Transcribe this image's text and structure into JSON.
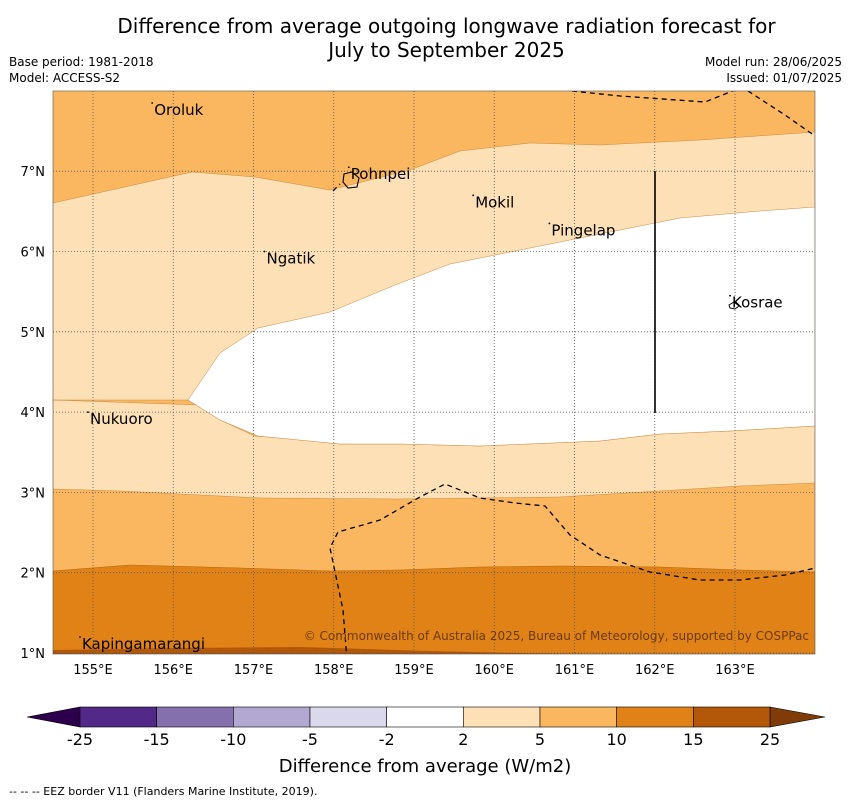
{
  "title_line1": "Difference from average outgoing longwave radiation forecast for",
  "title_line2": "July to September 2025",
  "base_period": "Base period: 1981-2018",
  "model": "Model: ACCESS-S2",
  "model_run": "Model run: 28/06/2025",
  "issued": "Issued: 01/07/2025",
  "copyright": "© Commonwealth of Australia 2025, Bureau of Meteorology, supported by COSPPac",
  "places": [
    {
      "name": "Oroluk",
      "lon": 155.75,
      "lat": 7.7
    },
    {
      "name": "Pohnpei",
      "lon": 158.2,
      "lat": 6.9
    },
    {
      "name": "Mokil",
      "lon": 159.75,
      "lat": 6.55
    },
    {
      "name": "Pingelap",
      "lon": 160.7,
      "lat": 6.2
    },
    {
      "name": "Ngatik",
      "lon": 157.15,
      "lat": 5.85
    },
    {
      "name": "Kosrae",
      "lon": 162.95,
      "lat": 5.3
    },
    {
      "name": "Nukuoro",
      "lon": 154.95,
      "lat": 3.85
    },
    {
      "name": "Kapingamarangi",
      "lon": 154.85,
      "lat": 1.05
    }
  ],
  "x_ticks": [
    "155°E",
    "156°E",
    "157°E",
    "158°E",
    "159°E",
    "160°E",
    "161°E",
    "162°E",
    "163°E"
  ],
  "y_ticks": [
    "1°N",
    "2°N",
    "3°N",
    "4°N",
    "5°N",
    "6°N",
    "7°N"
  ],
  "colorbar": {
    "label": "Difference from average (W/m2)",
    "ticks": [
      "-25",
      "-15",
      "-10",
      "-5",
      "-2",
      "2",
      "5",
      "10",
      "15",
      "25"
    ],
    "colors": [
      "#522888",
      "#8470ad",
      "#b2a8d1",
      "#dad9eb",
      "#ffffff",
      "#fde0b6",
      "#fbb660",
      "#e08216",
      "#b35709"
    ],
    "under_color": "#2d004b",
    "over_color": "#7f3b08"
  },
  "colors": {
    "band_2_5": "#fde0b6",
    "band_5_10": "#fbb660",
    "band_10_15": "#e08216",
    "band_15_25": "#b35709"
  },
  "footnote": "--  --  -- EEZ border V11 (Flanders Marine Institute, 2019)."
}
